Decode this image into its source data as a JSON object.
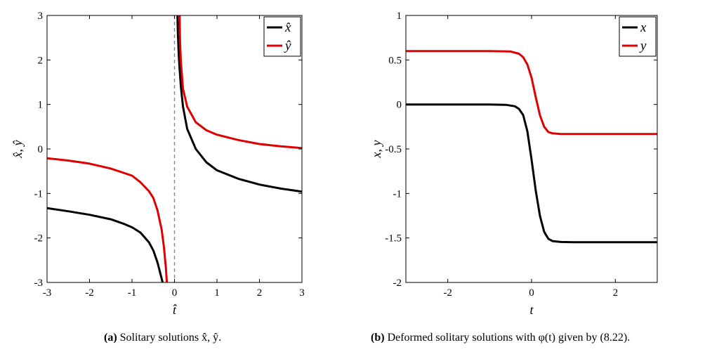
{
  "chart_data": [
    {
      "id": "a",
      "type": "line",
      "caption_tag": "(a)",
      "caption_text": "Solitary solutions x̂, ŷ.",
      "xlabel": "t̂",
      "ylabel": "x̂, ŷ",
      "xlim": [
        -3,
        3
      ],
      "ylim": [
        -3,
        3
      ],
      "xticks": [
        -3,
        -2,
        -1,
        0,
        1,
        2,
        3
      ],
      "yticks": [
        -3,
        -2,
        -1,
        0,
        1,
        2,
        3
      ],
      "legend_position": "top-right",
      "vertical_reference_line": 0,
      "series": [
        {
          "name": "x̂",
          "color": "#000000",
          "segments": [
            [
              [
                -3,
                -1.33
              ],
              [
                -2.5,
                -1.4
              ],
              [
                -2,
                -1.48
              ],
              [
                -1.5,
                -1.58
              ],
              [
                -1.2,
                -1.68
              ],
              [
                -1,
                -1.76
              ],
              [
                -0.8,
                -1.88
              ],
              [
                -0.6,
                -2.1
              ],
              [
                -0.5,
                -2.28
              ],
              [
                -0.4,
                -2.55
              ],
              [
                -0.3,
                -2.92
              ],
              [
                -0.28,
                -3.0
              ]
            ],
            [
              [
                0.07,
                3.0
              ],
              [
                0.08,
                2.6
              ],
              [
                0.1,
                2.1
              ],
              [
                0.12,
                1.8
              ],
              [
                0.15,
                1.4
              ],
              [
                0.2,
                0.95
              ],
              [
                0.3,
                0.45
              ],
              [
                0.5,
                0.0
              ],
              [
                0.75,
                -0.3
              ],
              [
                1,
                -0.48
              ],
              [
                1.5,
                -0.67
              ],
              [
                2,
                -0.8
              ],
              [
                2.5,
                -0.89
              ],
              [
                3,
                -0.96
              ]
            ]
          ]
        },
        {
          "name": "ŷ",
          "color": "#e00000",
          "segments": [
            [
              [
                -3,
                -0.21
              ],
              [
                -2.5,
                -0.26
              ],
              [
                -2,
                -0.33
              ],
              [
                -1.5,
                -0.44
              ],
              [
                -1,
                -0.6
              ],
              [
                -0.8,
                -0.75
              ],
              [
                -0.6,
                -0.95
              ],
              [
                -0.5,
                -1.1
              ],
              [
                -0.4,
                -1.38
              ],
              [
                -0.3,
                -1.82
              ],
              [
                -0.25,
                -2.2
              ],
              [
                -0.2,
                -2.7
              ],
              [
                -0.18,
                -3.0
              ]
            ],
            [
              [
                0.12,
                3.0
              ],
              [
                0.13,
                2.4
              ],
              [
                0.15,
                1.95
              ],
              [
                0.2,
                1.35
              ],
              [
                0.3,
                0.95
              ],
              [
                0.5,
                0.6
              ],
              [
                0.75,
                0.42
              ],
              [
                1,
                0.32
              ],
              [
                1.5,
                0.2
              ],
              [
                2,
                0.11
              ],
              [
                2.5,
                0.06
              ],
              [
                3,
                0.02
              ]
            ]
          ]
        }
      ]
    },
    {
      "id": "b",
      "type": "line",
      "caption_tag": "(b)",
      "caption_text": "Deformed solitary solutions with φ(t) given by (8.22).",
      "xlabel": "t",
      "ylabel": "x, y",
      "xlim": [
        -3,
        3
      ],
      "ylim": [
        -2,
        1
      ],
      "xticks": [
        -2,
        0,
        2
      ],
      "yticks": [
        -2,
        -1.5,
        -1,
        -0.5,
        0,
        0.5,
        1
      ],
      "legend_position": "top-right",
      "series": [
        {
          "name": "x",
          "color": "#000000",
          "segments": [
            [
              [
                -3,
                0.0
              ],
              [
                -1,
                0.0
              ],
              [
                -0.6,
                -0.005
              ],
              [
                -0.4,
                -0.02
              ],
              [
                -0.3,
                -0.05
              ],
              [
                -0.2,
                -0.12
              ],
              [
                -0.1,
                -0.3
              ],
              [
                0,
                -0.62
              ],
              [
                0.1,
                -0.97
              ],
              [
                0.2,
                -1.25
              ],
              [
                0.3,
                -1.43
              ],
              [
                0.4,
                -1.51
              ],
              [
                0.5,
                -1.535
              ],
              [
                0.7,
                -1.545
              ],
              [
                1,
                -1.548
              ],
              [
                3,
                -1.548
              ]
            ]
          ]
        },
        {
          "name": "y",
          "color": "#e00000",
          "segments": [
            [
              [
                -3,
                0.6
              ],
              [
                -1,
                0.6
              ],
              [
                -0.5,
                0.595
              ],
              [
                -0.3,
                0.57
              ],
              [
                -0.2,
                0.53
              ],
              [
                -0.1,
                0.45
              ],
              [
                0,
                0.3
              ],
              [
                0.1,
                0.08
              ],
              [
                0.2,
                -0.12
              ],
              [
                0.3,
                -0.25
              ],
              [
                0.4,
                -0.31
              ],
              [
                0.5,
                -0.325
              ],
              [
                0.7,
                -0.332
              ],
              [
                1,
                -0.333
              ],
              [
                3,
                -0.333
              ]
            ]
          ]
        }
      ]
    }
  ]
}
